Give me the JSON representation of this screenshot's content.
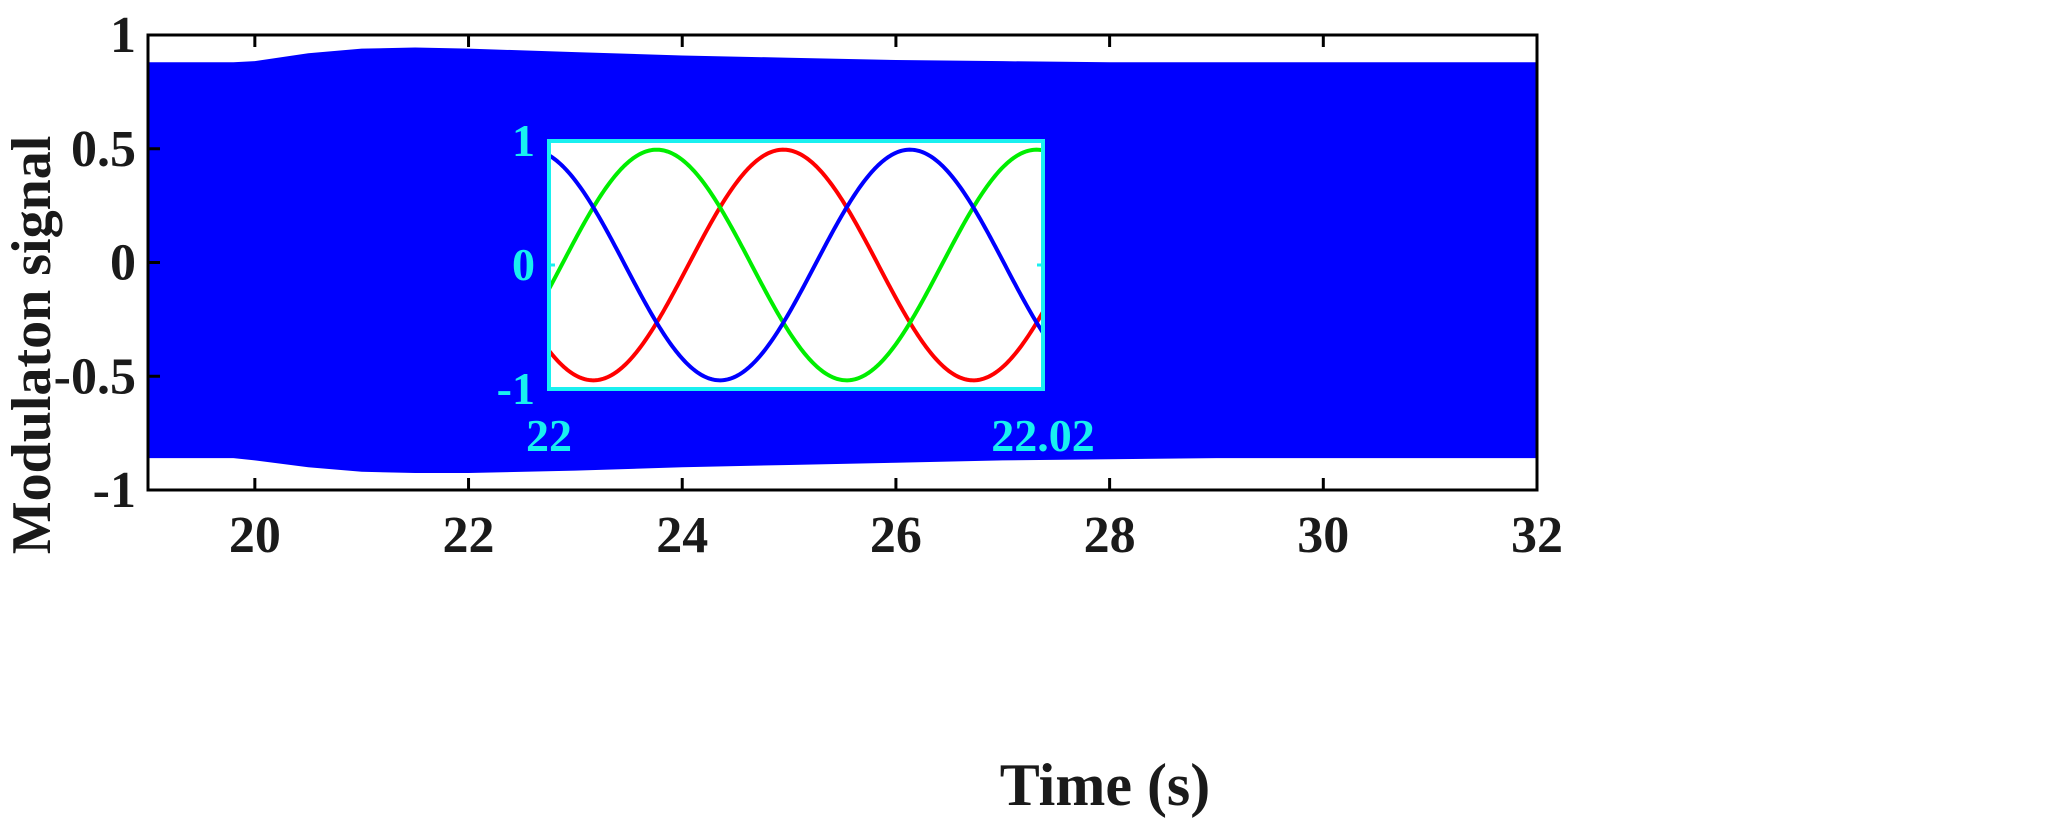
{
  "chart_data": [
    {
      "type": "line",
      "title": "",
      "xlabel": "Time (s)",
      "ylabel": "Modulaton signal",
      "xlim": [
        19,
        32
      ],
      "ylim": [
        -1,
        1
      ],
      "x_ticks": [
        20,
        22,
        24,
        26,
        28,
        30,
        32
      ],
      "x_tick_labels": [
        "20",
        "22",
        "24",
        "26",
        "28",
        "30",
        "32"
      ],
      "y_ticks": [
        1,
        0.5,
        0,
        -0.5,
        -1
      ],
      "y_tick_labels": [
        "1",
        "0.5",
        "0",
        "-0.5",
        "-1"
      ],
      "grid": false,
      "series": [
        {
          "color": "#0000ff",
          "style": "dense oscillation (filled envelope)",
          "envelope_x": [
            19,
            19.8,
            20,
            20.5,
            21,
            21.5,
            22,
            23,
            24,
            25,
            26,
            27,
            28,
            29,
            30,
            31,
            32
          ],
          "envelope_upper": [
            0.88,
            0.88,
            0.885,
            0.92,
            0.94,
            0.945,
            0.94,
            0.925,
            0.91,
            0.9,
            0.89,
            0.885,
            0.88,
            0.88,
            0.88,
            0.88,
            0.88
          ],
          "envelope_lower": [
            -0.86,
            -0.86,
            -0.87,
            -0.9,
            -0.92,
            -0.925,
            -0.925,
            -0.915,
            -0.9,
            -0.89,
            -0.88,
            -0.87,
            -0.865,
            -0.86,
            -0.86,
            -0.86,
            -0.86
          ]
        }
      ]
    },
    {
      "type": "line",
      "title": "",
      "xlabel": "",
      "ylabel": "",
      "xlim": [
        22,
        22.02
      ],
      "ylim": [
        -1,
        1
      ],
      "x_tick_labels": [
        "22",
        "22.02"
      ],
      "y_ticks": [
        1,
        0,
        -1
      ],
      "y_tick_labels": [
        "1",
        "0",
        "-1"
      ],
      "grid": false,
      "placement": "center inset",
      "frequency_hz": 65,
      "series": [
        {
          "color": "#ff0000",
          "amplitude": 0.93,
          "phase_deg": -132
        },
        {
          "color": "#00ee00",
          "amplitude": 0.93,
          "phase_deg": -12
        },
        {
          "color": "#0000ff",
          "amplitude": 0.93,
          "phase_deg": 108
        }
      ]
    }
  ]
}
